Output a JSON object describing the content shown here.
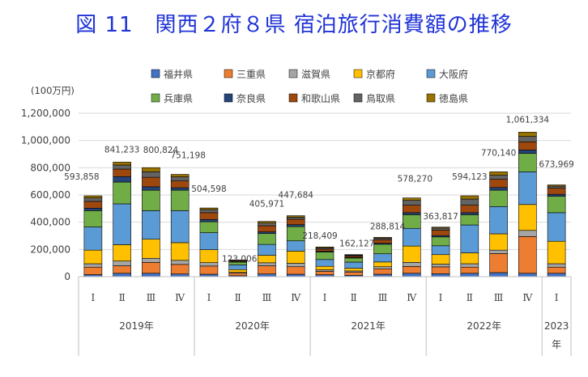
{
  "title": "図 11　関西２府８県 宿泊旅行消費額の推移",
  "chart_data": {
    "type": "bar",
    "stacked": true,
    "ylabel": "(100万円)",
    "ylim": [
      0,
      1200000
    ],
    "yticks": [
      "0",
      "200,000",
      "400,000",
      "600,000",
      "800,000",
      "1,000,000",
      "1,200,000"
    ],
    "grid": true,
    "legend_position": "top",
    "quarter_labels": [
      "Ⅰ",
      "Ⅱ",
      "Ⅲ",
      "Ⅳ",
      "Ⅰ",
      "Ⅱ",
      "Ⅲ",
      "Ⅳ",
      "Ⅰ",
      "Ⅱ",
      "Ⅲ",
      "Ⅳ",
      "Ⅰ",
      "Ⅱ",
      "Ⅲ",
      "Ⅳ",
      "Ⅰ"
    ],
    "year_groups": [
      {
        "label": "2019年",
        "start": 0,
        "count": 4
      },
      {
        "label": "2020年",
        "start": 4,
        "count": 4
      },
      {
        "label": "2021年",
        "start": 8,
        "count": 4
      },
      {
        "label": "2022年",
        "start": 12,
        "count": 4
      },
      {
        "label": "2023年",
        "start": 16,
        "count": 1
      }
    ],
    "total_labels": [
      "593,858",
      "841,233",
      "800,824",
      "751,198",
      "504,598",
      "123,006",
      "405,971",
      "447,684",
      "218,409",
      "162,127",
      "288,814",
      "578,270",
      "363,817",
      "594,123",
      "770,140",
      "1,061,334",
      "673,969"
    ],
    "totals": [
      593858,
      841233,
      800824,
      751198,
      504598,
      123006,
      405971,
      447684,
      218409,
      162127,
      288814,
      578270,
      363817,
      594123,
      770140,
      1061334,
      673969
    ],
    "series": [
      {
        "name": "福井県",
        "color": "#4472c4",
        "values": [
          15000,
          25000,
          25000,
          20000,
          18000,
          7000,
          20000,
          18000,
          14000,
          10000,
          18000,
          25000,
          22000,
          25000,
          30000,
          25000,
          25000
        ]
      },
      {
        "name": "三重県",
        "color": "#ed7d31",
        "values": [
          55000,
          55000,
          80000,
          70000,
          60000,
          18000,
          60000,
          55000,
          25000,
          22000,
          40000,
          50000,
          50000,
          45000,
          140000,
          270000,
          45000
        ]
      },
      {
        "name": "滋賀県",
        "color": "#a5a5a5",
        "values": [
          25000,
          35000,
          30000,
          30000,
          25000,
          7000,
          22000,
          25000,
          12000,
          10000,
          15000,
          30000,
          20000,
          25000,
          25000,
          45000,
          25000
        ]
      },
      {
        "name": "京都府",
        "color": "#ffc000",
        "values": [
          100000,
          120000,
          140000,
          130000,
          95000,
          20000,
          55000,
          90000,
          25000,
          20000,
          35000,
          120000,
          70000,
          80000,
          120000,
          190000,
          165000
        ]
      },
      {
        "name": "大阪府",
        "color": "#5b9bd5",
        "values": [
          170000,
          300000,
          210000,
          235000,
          125000,
          35000,
          80000,
          75000,
          50000,
          45000,
          60000,
          130000,
          65000,
          205000,
          200000,
          240000,
          210000
        ]
      },
      {
        "name": "兵庫県",
        "color": "#70ad47",
        "values": [
          120000,
          160000,
          150000,
          150000,
          80000,
          20000,
          80000,
          105000,
          55000,
          30000,
          70000,
          100000,
          65000,
          75000,
          120000,
          135000,
          120000
        ]
      },
      {
        "name": "奈良県",
        "color": "#264478",
        "values": [
          18000,
          40000,
          25000,
          18000,
          17000,
          4000,
          12000,
          14000,
          6000,
          5000,
          8000,
          15000,
          10000,
          15000,
          20000,
          25000,
          15000
        ]
      },
      {
        "name": "和歌山県",
        "color": "#9e480e",
        "values": [
          50000,
          55000,
          70000,
          50000,
          50000,
          8000,
          45000,
          40000,
          15000,
          10000,
          25000,
          55000,
          40000,
          55000,
          60000,
          60000,
          45000
        ]
      },
      {
        "name": "鳥取県",
        "color": "#636363",
        "values": [
          25000,
          30000,
          40000,
          30000,
          23000,
          3000,
          20000,
          15000,
          10000,
          6000,
          12000,
          35000,
          15000,
          45000,
          30000,
          40000,
          15000
        ]
      },
      {
        "name": "徳島県",
        "color": "#997300",
        "values": [
          15858,
          21233,
          30824,
          18198,
          11598,
          1006,
          11971,
          10684,
          6409,
          4127,
          5814,
          18270,
          6817,
          24123,
          25140,
          31334,
          8969
        ]
      }
    ]
  }
}
